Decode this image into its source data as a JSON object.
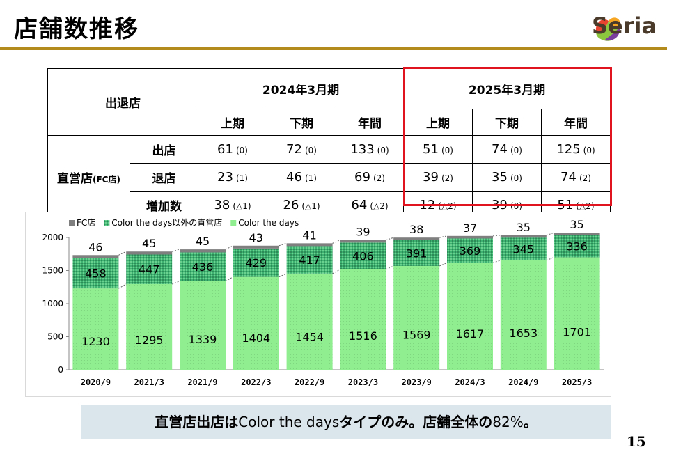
{
  "title": "店舗数推移",
  "brand": "Seria",
  "page_number": "15",
  "colors": {
    "accent_bar": "#b38a1c",
    "highlight": "#e0141e",
    "fc": "#7f7f7f",
    "other_direct": "#3cb371",
    "color_days": "#90ee90",
    "caption_bg": "#dbe5ec"
  },
  "table": {
    "corner_label": "出退店",
    "period_2024": "2024年3月期",
    "period_2025": "2025年3月期",
    "sub_headers": [
      "上期",
      "下期",
      "年間",
      "上期",
      "下期",
      "年間"
    ],
    "group_label": "直営店",
    "group_label_note": "(FC店)",
    "rows": [
      {
        "label": "出店",
        "cells": [
          {
            "v": "61",
            "p": "(0)"
          },
          {
            "v": "72",
            "p": "(0)"
          },
          {
            "v": "133",
            "p": "(0)"
          },
          {
            "v": "51",
            "p": "(0)"
          },
          {
            "v": "74",
            "p": "(0)"
          },
          {
            "v": "125",
            "p": "(0)"
          }
        ]
      },
      {
        "label": "退店",
        "cells": [
          {
            "v": "23",
            "p": "(1)"
          },
          {
            "v": "46",
            "p": "(1)"
          },
          {
            "v": "69",
            "p": "(2)"
          },
          {
            "v": "39",
            "p": "(2)"
          },
          {
            "v": "35",
            "p": "(0)"
          },
          {
            "v": "74",
            "p": "(2)"
          }
        ]
      },
      {
        "label": "増加数",
        "cells": [
          {
            "v": "38",
            "p": "(△1)"
          },
          {
            "v": "26",
            "p": "(△1)"
          },
          {
            "v": "64",
            "p": "(△2)"
          },
          {
            "v": "12",
            "p": "(△2)"
          },
          {
            "v": "39",
            "p": "(0)"
          },
          {
            "v": "51",
            "p": "(△2)"
          }
        ]
      }
    ]
  },
  "chart_data": {
    "type": "bar",
    "stacked": true,
    "categories": [
      "2020/9",
      "2021/3",
      "2021/9",
      "2022/3",
      "2022/9",
      "2023/3",
      "2023/9",
      "2024/3",
      "2024/9",
      "2025/3"
    ],
    "series": [
      {
        "name": "Color the days",
        "values": [
          1230,
          1295,
          1339,
          1404,
          1454,
          1516,
          1569,
          1617,
          1653,
          1701
        ]
      },
      {
        "name": "Color the days以外の直営店",
        "values": [
          458,
          447,
          436,
          429,
          417,
          406,
          391,
          369,
          345,
          336
        ]
      },
      {
        "name": "FC店",
        "values": [
          46,
          45,
          45,
          43,
          41,
          39,
          38,
          37,
          35,
          35
        ]
      }
    ],
    "legend": [
      "FC店",
      "Color the days以外の直営店",
      "Color the days"
    ],
    "yticks": [
      "0",
      "500",
      "1000",
      "1500",
      "2000"
    ],
    "ylim": [
      0,
      2000
    ],
    "legend_position": "top-left"
  },
  "caption": {
    "part1": "直営店出店は",
    "part2": "Color the days",
    "part3": "タイプのみ。店舗全体の",
    "part4": "82%",
    "part5": "。"
  }
}
